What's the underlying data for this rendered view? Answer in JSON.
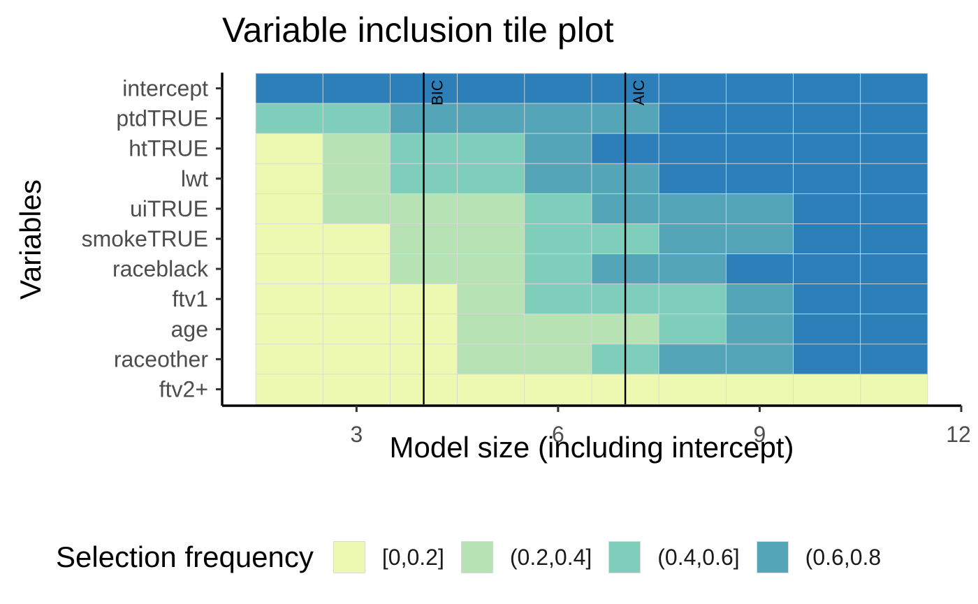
{
  "chart_data": {
    "type": "heatmap",
    "title": "Variable inclusion tile plot",
    "xlabel": "Model size (including intercept)",
    "ylabel": "Variables",
    "x": [
      2,
      3,
      4,
      5,
      6,
      7,
      8,
      9,
      10,
      11
    ],
    "xlim": [
      1,
      12
    ],
    "xticks": [
      3,
      6,
      9,
      12
    ],
    "y_categories": [
      "intercept",
      "ptdTRUE",
      "htTRUE",
      "lwt",
      "uiTRUE",
      "smokeTRUE",
      "raceblack",
      "ftv1",
      "age",
      "raceother",
      "ftv2+"
    ],
    "bin_matrix": [
      [
        4,
        4,
        4,
        4,
        4,
        4,
        4,
        4,
        4,
        4
      ],
      [
        2,
        2,
        3,
        3,
        3,
        3,
        4,
        4,
        4,
        4
      ],
      [
        0,
        1,
        2,
        2,
        3,
        4,
        4,
        4,
        4,
        4
      ],
      [
        0,
        1,
        2,
        2,
        3,
        3,
        4,
        4,
        4,
        4
      ],
      [
        0,
        1,
        1,
        1,
        2,
        3,
        3,
        3,
        4,
        4
      ],
      [
        0,
        0,
        1,
        1,
        2,
        2,
        3,
        3,
        4,
        4
      ],
      [
        0,
        0,
        1,
        1,
        2,
        3,
        3,
        4,
        4,
        4
      ],
      [
        0,
        0,
        0,
        1,
        2,
        2,
        2,
        3,
        4,
        4
      ],
      [
        0,
        0,
        0,
        1,
        1,
        1,
        2,
        3,
        4,
        4
      ],
      [
        0,
        0,
        0,
        1,
        1,
        2,
        3,
        3,
        4,
        4
      ],
      [
        0,
        0,
        0,
        0,
        0,
        0,
        0,
        0,
        0,
        0
      ]
    ],
    "bins": [
      "[0,0.2]",
      "(0.2,0.4]",
      "(0.4,0.6]",
      "(0.6,0.8",
      ""
    ],
    "bin_colors": [
      "#edf8b1",
      "#b7e2b4",
      "#7fcdbb",
      "#54a5b8",
      "#2c7fb8"
    ],
    "vlines": [
      {
        "x": 4,
        "label": "BIC"
      },
      {
        "x": 7,
        "label": "AIC"
      }
    ],
    "legend_title": "Selection frequency",
    "legend_position": "bottom"
  }
}
